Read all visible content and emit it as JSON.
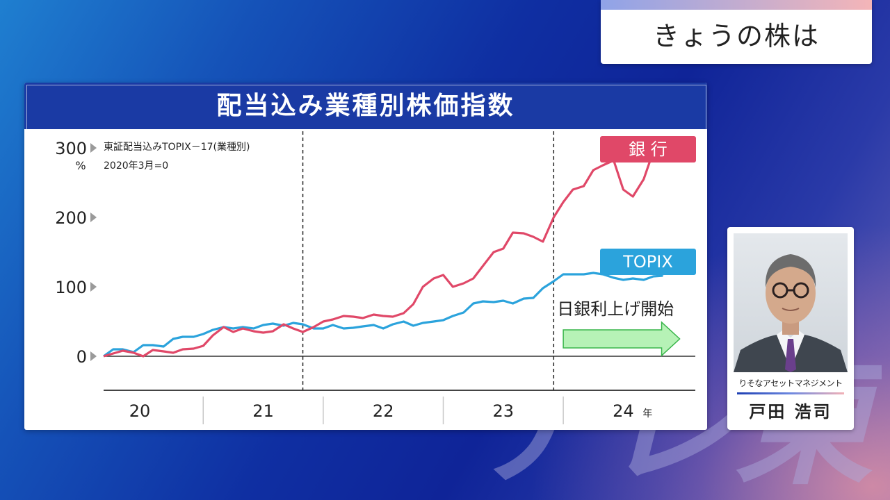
{
  "topic_label": "きょうの株は",
  "watermark": "テレ東",
  "chart_data": {
    "type": "line",
    "title": "配当込み業種別株価指数",
    "source_note": "東証配当込みTOPIX－17(業種別)",
    "base_note": "2020年3月=0",
    "y_unit": "%",
    "ylim": [
      -40,
      305
    ],
    "y_ticks": [
      "300",
      "200",
      "100",
      "0"
    ],
    "y_tick_values": [
      300,
      200,
      100,
      0
    ],
    "x_ticks": [
      "20",
      "21",
      "22",
      "23",
      "24"
    ],
    "x_unit": "年",
    "xlim": [
      2020.17,
      2025.1
    ],
    "grid": false,
    "series": [
      {
        "name": "銀 行",
        "color": "#e04868",
        "x": [
          2020.17,
          2020.25,
          2020.33,
          2020.42,
          2020.5,
          2020.58,
          2020.67,
          2020.75,
          2020.83,
          2020.92,
          2021.0,
          2021.08,
          2021.17,
          2021.25,
          2021.33,
          2021.42,
          2021.5,
          2021.58,
          2021.67,
          2021.75,
          2021.83,
          2021.92,
          2022.0,
          2022.08,
          2022.17,
          2022.25,
          2022.33,
          2022.42,
          2022.5,
          2022.58,
          2022.67,
          2022.75,
          2022.83,
          2022.92,
          2023.0,
          2023.08,
          2023.17,
          2023.25,
          2023.33,
          2023.42,
          2023.5,
          2023.58,
          2023.67,
          2023.75,
          2023.83,
          2023.92,
          2024.0,
          2024.08,
          2024.17,
          2024.25,
          2024.33,
          2024.42,
          2024.5,
          2024.58,
          2024.67,
          2024.75,
          2024.83
        ],
        "values": [
          0,
          4,
          8,
          5,
          0,
          9,
          7,
          5,
          10,
          11,
          15,
          30,
          42,
          35,
          40,
          36,
          34,
          36,
          46,
          40,
          35,
          42,
          50,
          53,
          58,
          57,
          55,
          60,
          58,
          57,
          62,
          75,
          100,
          112,
          117,
          100,
          105,
          112,
          130,
          150,
          155,
          178,
          177,
          172,
          165,
          200,
          222,
          240,
          245,
          268,
          275,
          282,
          240,
          230,
          255,
          295,
          302
        ]
      },
      {
        "name": "TOPIX",
        "color": "#2ba3dc",
        "x": [
          2020.17,
          2020.25,
          2020.33,
          2020.42,
          2020.5,
          2020.58,
          2020.67,
          2020.75,
          2020.83,
          2020.92,
          2021.0,
          2021.08,
          2021.17,
          2021.25,
          2021.33,
          2021.42,
          2021.5,
          2021.58,
          2021.67,
          2021.75,
          2021.83,
          2021.92,
          2022.0,
          2022.08,
          2022.17,
          2022.25,
          2022.33,
          2022.42,
          2022.5,
          2022.58,
          2022.67,
          2022.75,
          2022.83,
          2022.92,
          2023.0,
          2023.08,
          2023.17,
          2023.25,
          2023.33,
          2023.42,
          2023.5,
          2023.58,
          2023.67,
          2023.75,
          2023.83,
          2023.92,
          2024.0,
          2024.08,
          2024.17,
          2024.25,
          2024.33,
          2024.42,
          2024.5,
          2024.58,
          2024.67,
          2024.75,
          2024.83
        ],
        "values": [
          0,
          10,
          10,
          6,
          16,
          16,
          14,
          25,
          28,
          28,
          32,
          38,
          42,
          40,
          42,
          40,
          45,
          47,
          44,
          48,
          46,
          40,
          40,
          45,
          40,
          41,
          43,
          45,
          40,
          46,
          50,
          44,
          48,
          50,
          52,
          58,
          63,
          76,
          79,
          78,
          80,
          76,
          83,
          84,
          98,
          108,
          118,
          118,
          118,
          120,
          118,
          113,
          110,
          112,
          110,
          115,
          116
        ]
      }
    ],
    "vlines": [
      2021.83,
      2023.92
    ],
    "annotation": {
      "text": "日銀利上げ開始",
      "arrow_from": 2024.0,
      "arrow_to": 2024.97,
      "arrow_color": "#b6f2b6",
      "arrow_stroke": "#39b54a"
    }
  },
  "person": {
    "org": "りそなアセットマネジメント",
    "name": "戸田 浩司"
  }
}
